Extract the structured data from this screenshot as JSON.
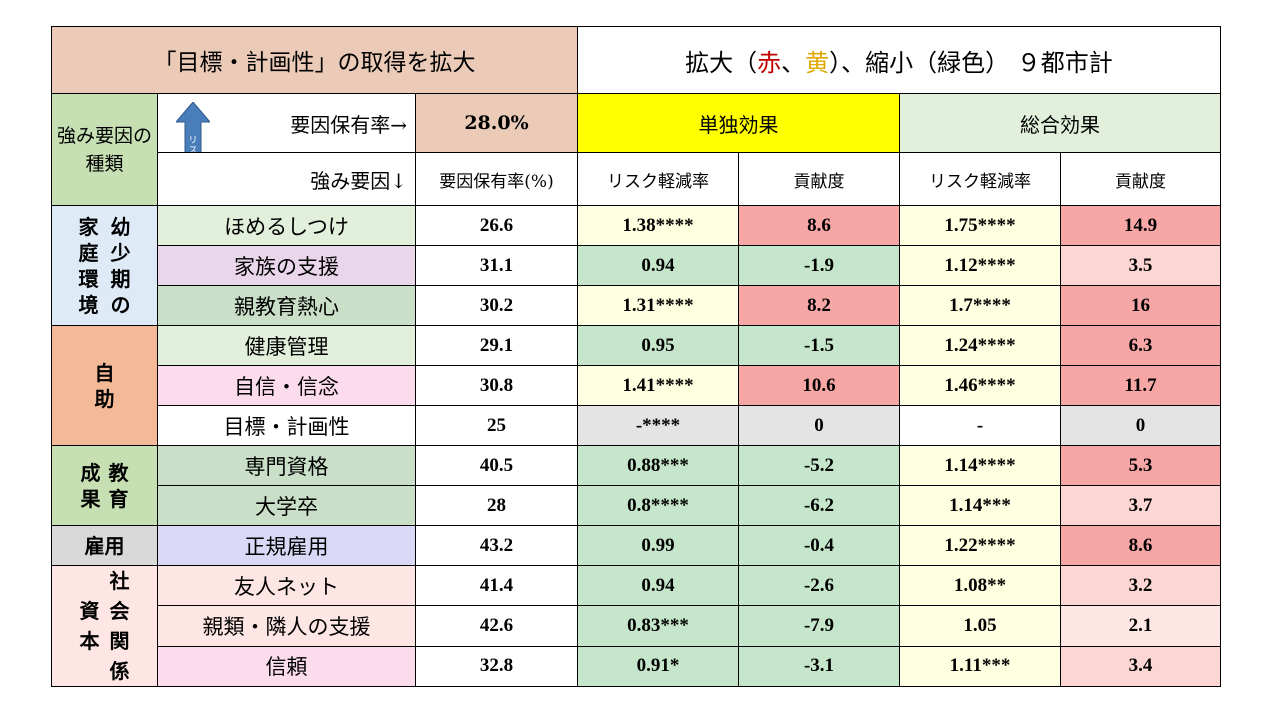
{
  "title_left": "「目標・計画性」の取得を拡大",
  "title_right": {
    "prefix": "拡大（",
    "red": "赤",
    "sep": "、",
    "yellow": "黄",
    "middle": "）、縮小（緑色）",
    "suffix": "９都市計"
  },
  "header": {
    "kind_label": "強み要因の種類",
    "vertical_arrow_label": "リスク軽減",
    "holding_rate_label": "要因保有率→",
    "holding_rate_value": "28.0%",
    "strength_factor_label": "強み要因↓",
    "solo_effect": "単独効果",
    "total_effect": "総合効果",
    "col_holding_rate": "要因保有率(%)",
    "col_risk_reduction_1": "リスク軽減率",
    "col_contribution_1": "貢献度",
    "col_risk_reduction_2": "リスク軽減率",
    "col_contribution_2": "貢献度"
  },
  "categories": {
    "childhood_family": [
      "家",
      "幼",
      "庭",
      "少",
      "環",
      "期",
      "境",
      "の"
    ],
    "self_help": [
      "自",
      "助"
    ],
    "education_result": [
      "成",
      "教",
      "果",
      "育"
    ],
    "employment": "雇用",
    "social_capital": [
      "社",
      "資",
      "会",
      "本",
      "関",
      "係"
    ]
  },
  "rows": [
    {
      "factor": "ほめるしつけ",
      "rate": "26.6",
      "solo_risk": "1.38****",
      "solo_contrib": "8.6",
      "total_risk": "1.75****",
      "total_contrib": "14.9"
    },
    {
      "factor": "家族の支援",
      "rate": "31.1",
      "solo_risk": "0.94",
      "solo_contrib": "-1.9",
      "total_risk": "1.12****",
      "total_contrib": "3.5"
    },
    {
      "factor": "親教育熱心",
      "rate": "30.2",
      "solo_risk": "1.31****",
      "solo_contrib": "8.2",
      "total_risk": "1.7****",
      "total_contrib": "16"
    },
    {
      "factor": "健康管理",
      "rate": "29.1",
      "solo_risk": "0.95",
      "solo_contrib": "-1.5",
      "total_risk": "1.24****",
      "total_contrib": "6.3"
    },
    {
      "factor": "自信・信念",
      "rate": "30.8",
      "solo_risk": "1.41****",
      "solo_contrib": "10.6",
      "total_risk": "1.46****",
      "total_contrib": "11.7"
    },
    {
      "factor": "目標・計画性",
      "rate": "25",
      "solo_risk": "-****",
      "solo_contrib": "0",
      "total_risk": "-",
      "total_contrib": "0"
    },
    {
      "factor": "専門資格",
      "rate": "40.5",
      "solo_risk": "0.88***",
      "solo_contrib": "-5.2",
      "total_risk": "1.14****",
      "total_contrib": "5.3"
    },
    {
      "factor": "大学卒",
      "rate": "28",
      "solo_risk": "0.8****",
      "solo_contrib": "-6.2",
      "total_risk": "1.14***",
      "total_contrib": "3.7"
    },
    {
      "factor": "正規雇用",
      "rate": "43.2",
      "solo_risk": "0.99",
      "solo_contrib": "-0.4",
      "total_risk": "1.22****",
      "total_contrib": "8.6"
    },
    {
      "factor": "友人ネット",
      "rate": "41.4",
      "solo_risk": "0.94",
      "solo_contrib": "-2.6",
      "total_risk": "1.08**",
      "total_contrib": "3.2"
    },
    {
      "factor": "親類・隣人の支援",
      "rate": "42.6",
      "solo_risk": "0.83***",
      "solo_contrib": "-7.9",
      "total_risk": "1.05",
      "total_contrib": "2.1"
    },
    {
      "factor": "信頼",
      "rate": "32.8",
      "solo_risk": "0.91*",
      "solo_contrib": "-3.1",
      "total_risk": "1.11***",
      "total_contrib": "3.4"
    }
  ],
  "colors": {
    "title_left_bg": "#ebcbb8",
    "solo_header_bg": "#ffff00",
    "total_header_bg": "#e2efda",
    "increase_strong": "#f7a6a6",
    "increase_light": "#ffffe1",
    "decrease": "#c6e6cc",
    "arrow_blue": "#4a7ebb"
  }
}
